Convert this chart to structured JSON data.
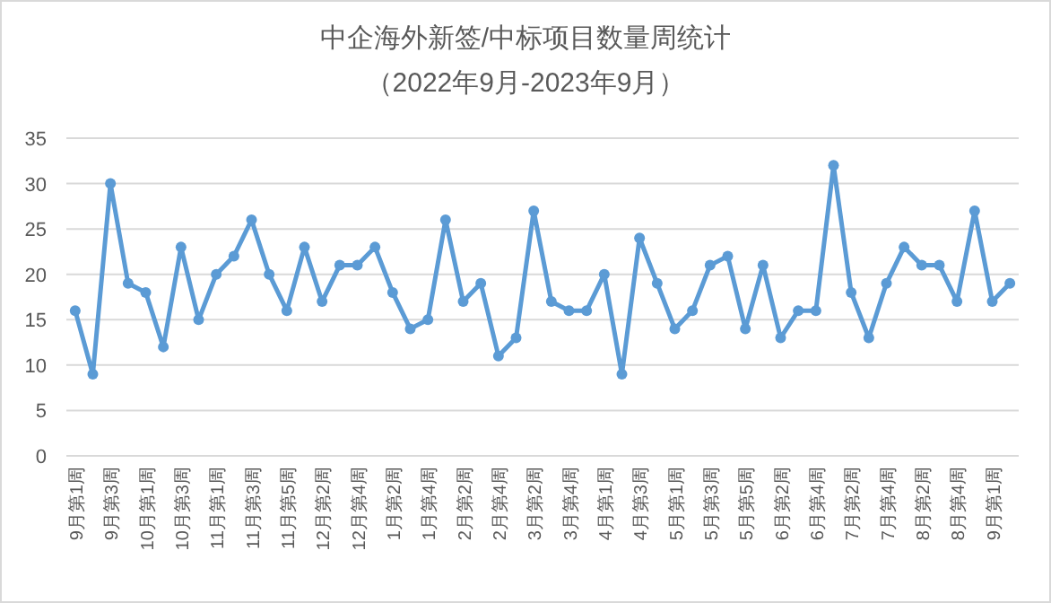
{
  "chart_data": {
    "type": "line",
    "title": "中企海外新签/中标项目数量周统计",
    "subtitle": "（2022年9月-2023年9月）",
    "categories": [
      "9月第1周",
      null,
      "9月第3周",
      null,
      "10月第1周",
      null,
      "10月第3周",
      null,
      "11月第1周",
      null,
      "11月第3周",
      null,
      "11月第5周",
      null,
      "12月第2周",
      null,
      "12月第4周",
      null,
      "1月第2周",
      null,
      "1月第4周",
      null,
      "2月第2周",
      null,
      "2月第4周",
      null,
      "3月第2周",
      null,
      "3月第4周",
      null,
      "4月第1周",
      null,
      "4月第3周",
      null,
      "5月第1周",
      null,
      "5月第3周",
      null,
      "5月第5周",
      null,
      "6月第2周",
      null,
      "6月第4周",
      null,
      "7月第2周",
      null,
      "7月第4周",
      null,
      "8月第2周",
      null,
      "8月第4周",
      null,
      "9月第1周",
      null
    ],
    "series": [
      {
        "color": "#5b9bd5",
        "values": [
          16,
          9,
          30,
          19,
          18,
          12,
          23,
          15,
          20,
          22,
          26,
          20,
          16,
          23,
          17,
          21,
          21,
          23,
          18,
          14,
          15,
          26,
          17,
          19,
          11,
          13,
          27,
          17,
          16,
          16,
          20,
          9,
          24,
          19,
          14,
          16,
          21,
          22,
          14,
          21,
          13,
          16,
          16,
          32,
          18,
          13,
          19,
          23,
          21,
          21,
          17,
          27,
          17,
          19
        ]
      }
    ],
    "ylim": [
      0,
      35
    ],
    "yticks": [
      0,
      5,
      10,
      15,
      20,
      25,
      30,
      35
    ],
    "grid": "y",
    "marker": "circle",
    "line_style": "solid"
  }
}
